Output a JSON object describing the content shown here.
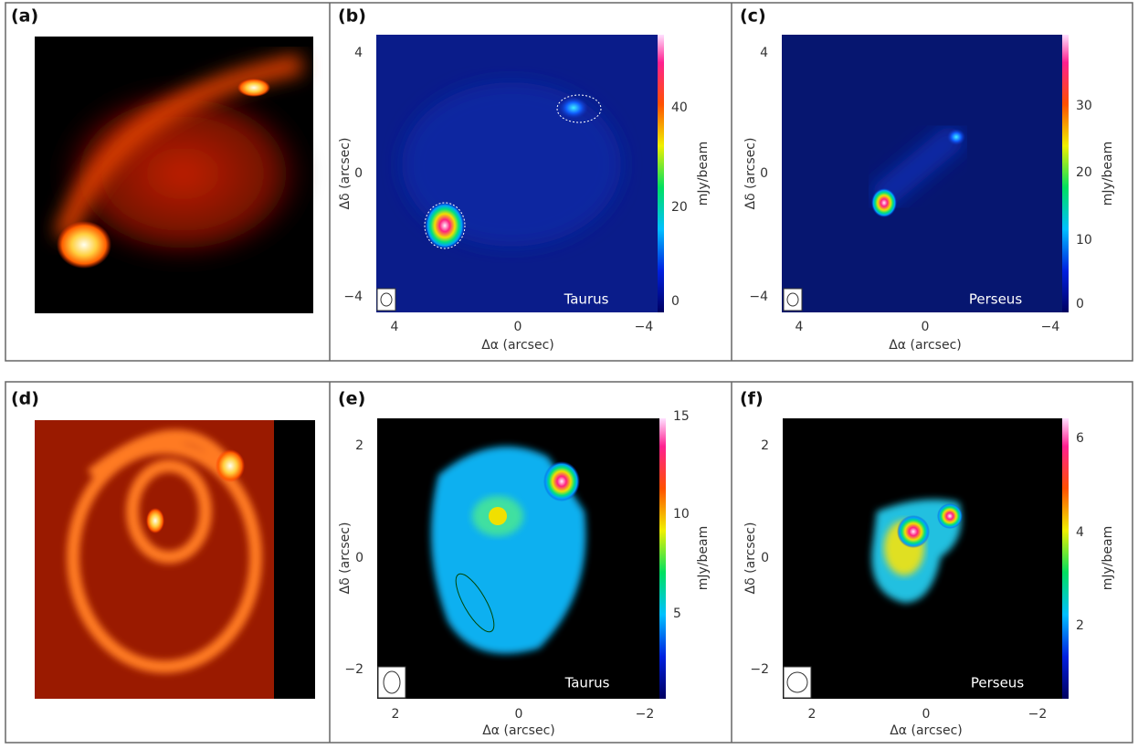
{
  "panels": [
    {
      "label": "(a)"
    },
    {
      "label": "(b)",
      "xlabel": "Δα (arcsec)",
      "ylabel": "Δδ (arcsec)",
      "xticks": [
        "4",
        "0",
        "−4"
      ],
      "yticks": [
        "4",
        "0",
        "−4"
      ],
      "colorbar_label": "mJy/beam",
      "colorbar_ticks": [
        "0",
        "20",
        "40"
      ],
      "region": "Taurus"
    },
    {
      "label": "(c)",
      "xlabel": "Δα (arcsec)",
      "ylabel": "Δδ (arcsec)",
      "xticks": [
        "4",
        "0",
        "−4"
      ],
      "yticks": [
        "4",
        "0",
        "−4"
      ],
      "colorbar_label": "mJy/beam",
      "colorbar_ticks": [
        "0",
        "10",
        "20",
        "30"
      ],
      "region": "Perseus"
    },
    {
      "label": "(d)"
    },
    {
      "label": "(e)",
      "xlabel": "Δα (arcsec)",
      "ylabel": "Δδ (arcsec)",
      "xticks": [
        "2",
        "0",
        "−2"
      ],
      "yticks": [
        "2",
        "0",
        "−2"
      ],
      "colorbar_label": "mJy/beam",
      "colorbar_ticks": [
        "5",
        "10",
        "15"
      ],
      "region": "Taurus"
    },
    {
      "label": "(f)",
      "xlabel": "Δα (arcsec)",
      "ylabel": "Δδ (arcsec)",
      "xticks": [
        "2",
        "0",
        "−2"
      ],
      "yticks": [
        "2",
        "0",
        "−2"
      ],
      "colorbar_label": "mJy/beam",
      "colorbar_ticks": [
        "2",
        "4",
        "6"
      ],
      "region": "Perseus"
    }
  ]
}
